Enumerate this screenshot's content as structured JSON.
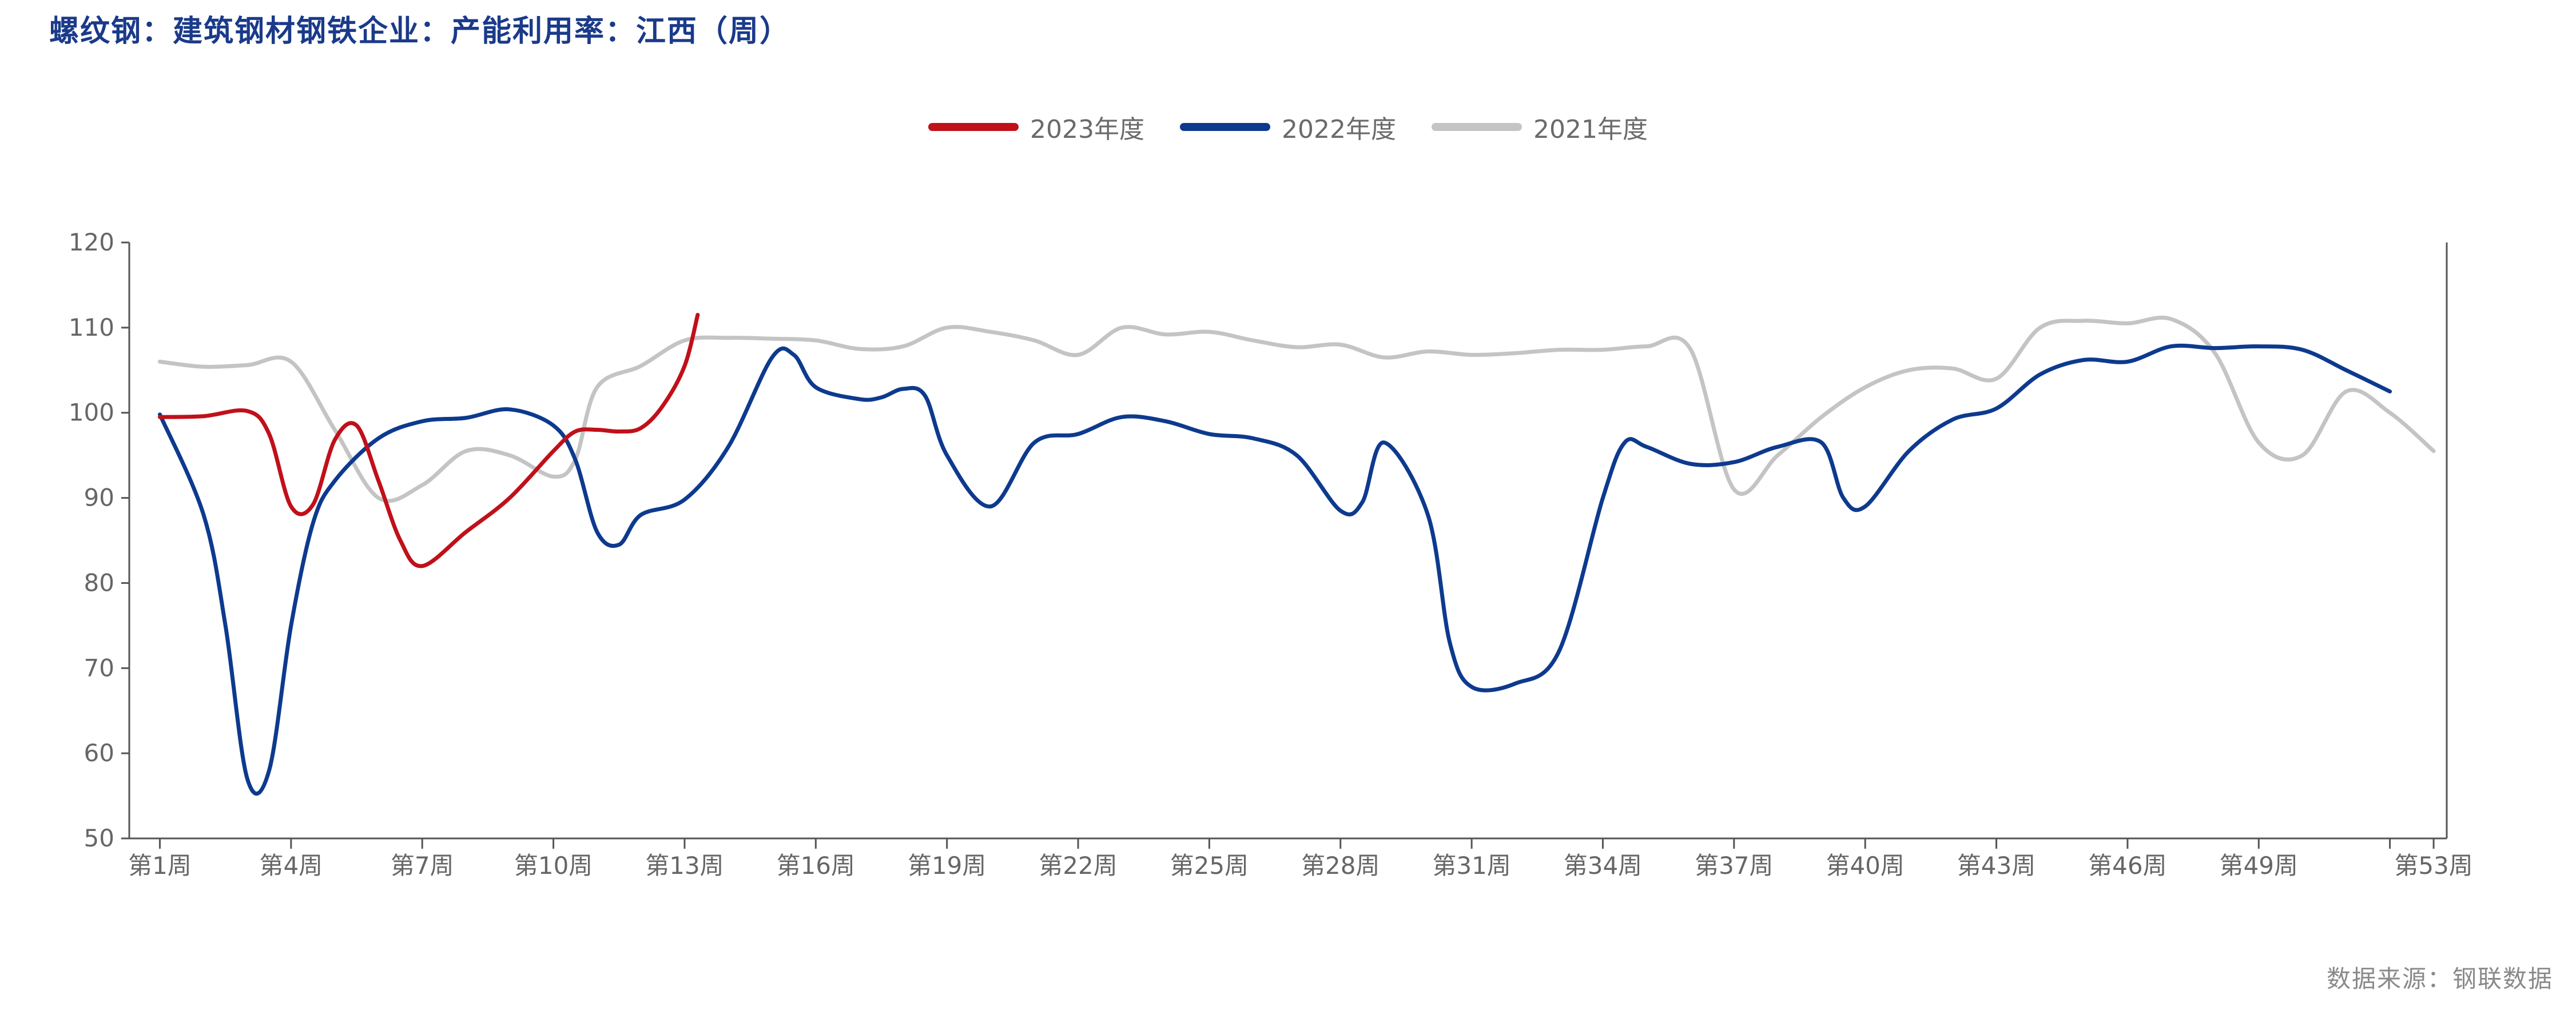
{
  "title": "螺纹钢：建筑钢材钢铁企业：产能利用率：江西（周）",
  "source": "数据来源：钢联数据",
  "chart_data": {
    "type": "line",
    "ylim": [
      50,
      120
    ],
    "yticks": [
      50,
      60,
      70,
      80,
      90,
      100,
      110,
      120
    ],
    "xlim": [
      0.3,
      53.3
    ],
    "xticks": [
      {
        "week": 1,
        "label": "第1周"
      },
      {
        "week": 4,
        "label": "第4周"
      },
      {
        "week": 7,
        "label": "第7周"
      },
      {
        "week": 10,
        "label": "第10周"
      },
      {
        "week": 13,
        "label": "第13周"
      },
      {
        "week": 16,
        "label": "第16周"
      },
      {
        "week": 19,
        "label": "第19周"
      },
      {
        "week": 22,
        "label": "第22周"
      },
      {
        "week": 25,
        "label": "第25周"
      },
      {
        "week": 28,
        "label": "第28周"
      },
      {
        "week": 31,
        "label": "第31周"
      },
      {
        "week": 34,
        "label": "第34周"
      },
      {
        "week": 37,
        "label": "第37周"
      },
      {
        "week": 40,
        "label": "第40周"
      },
      {
        "week": 43,
        "label": "第43周"
      },
      {
        "week": 46,
        "label": "第46周"
      },
      {
        "week": 49,
        "label": "第49周"
      },
      {
        "week": 53,
        "label": "第53周"
      }
    ],
    "minor_tick_weeks": [
      52
    ],
    "legend_position": "top-center",
    "grid": false,
    "series": [
      {
        "name": "2023年度",
        "color": "#c0101a",
        "x": [
          1,
          2,
          3,
          3.5,
          4,
          4.5,
          5,
          5.5,
          6,
          6.5,
          7,
          8,
          9,
          10,
          10.5,
          11,
          11.5,
          12,
          12.5,
          13,
          13.3
        ],
        "y": [
          99.5,
          99.6,
          100.2,
          97.5,
          89.0,
          89.2,
          96.8,
          98.5,
          92.0,
          85.0,
          82.0,
          86.0,
          90.0,
          95.5,
          97.8,
          98.0,
          97.8,
          98.2,
          100.8,
          105.5,
          111.5
        ]
      },
      {
        "name": "2022年度",
        "color": "#0d3a8e",
        "x": [
          1,
          2,
          2.5,
          3,
          3.5,
          4,
          4.5,
          5,
          6,
          7,
          8,
          9,
          10,
          10.5,
          11,
          11.5,
          12,
          13,
          14,
          15,
          15.5,
          16,
          17,
          17.5,
          18,
          18.5,
          19,
          20,
          21,
          22,
          23,
          24,
          25,
          26,
          27,
          28,
          28.5,
          29,
          30,
          30.5,
          31,
          32,
          33,
          34,
          34.5,
          35,
          36,
          37,
          38,
          39,
          39.5,
          40,
          41,
          42,
          43,
          44,
          45,
          46,
          47,
          48,
          49,
          50,
          51,
          52
        ],
        "y": [
          99.8,
          88.0,
          75.0,
          57.0,
          58.0,
          75.0,
          87.0,
          92.0,
          97.0,
          99.0,
          99.4,
          100.4,
          98.5,
          94.5,
          86.0,
          84.5,
          88.0,
          89.8,
          96.0,
          106.5,
          106.8,
          103.0,
          101.6,
          101.8,
          102.8,
          102.0,
          95.0,
          89.0,
          96.5,
          97.5,
          99.5,
          99.0,
          97.5,
          97.0,
          95.0,
          88.5,
          89.5,
          96.5,
          88.0,
          73.0,
          67.8,
          68.2,
          72.0,
          90.0,
          96.5,
          96.0,
          94.0,
          94.2,
          96.0,
          96.5,
          90.0,
          89.0,
          95.5,
          99.2,
          100.5,
          104.5,
          106.2,
          106.0,
          107.8,
          107.6,
          107.8,
          107.4,
          105.0,
          102.5
        ]
      },
      {
        "name": "2021年度",
        "color": "#c4c4c4",
        "x": [
          1,
          2,
          3,
          4,
          5,
          6,
          7,
          8,
          9,
          10,
          10.5,
          11,
          12,
          13,
          14,
          15,
          16,
          17,
          18,
          19,
          20,
          21,
          22,
          23,
          24,
          25,
          26,
          27,
          28,
          29,
          30,
          31,
          32,
          33,
          34,
          35,
          36,
          37,
          38,
          39,
          40,
          41,
          42,
          43,
          44,
          45,
          46,
          47,
          48,
          49,
          50,
          51,
          52,
          53
        ],
        "y": [
          106.0,
          105.4,
          105.6,
          106.0,
          98.0,
          90.0,
          91.5,
          95.5,
          95.0,
          92.5,
          94.5,
          103.0,
          105.5,
          108.5,
          108.8,
          108.7,
          108.5,
          107.5,
          107.8,
          110.0,
          109.5,
          108.5,
          106.8,
          110.0,
          109.2,
          109.5,
          108.5,
          107.7,
          108.0,
          106.5,
          107.2,
          106.8,
          107.0,
          107.4,
          107.4,
          107.8,
          107.5,
          91.0,
          95.0,
          99.5,
          103.0,
          105.0,
          105.2,
          104.0,
          110.0,
          110.8,
          110.5,
          111.0,
          107.0,
          96.5,
          95.0,
          102.5,
          100.0,
          95.5
        ]
      }
    ]
  }
}
